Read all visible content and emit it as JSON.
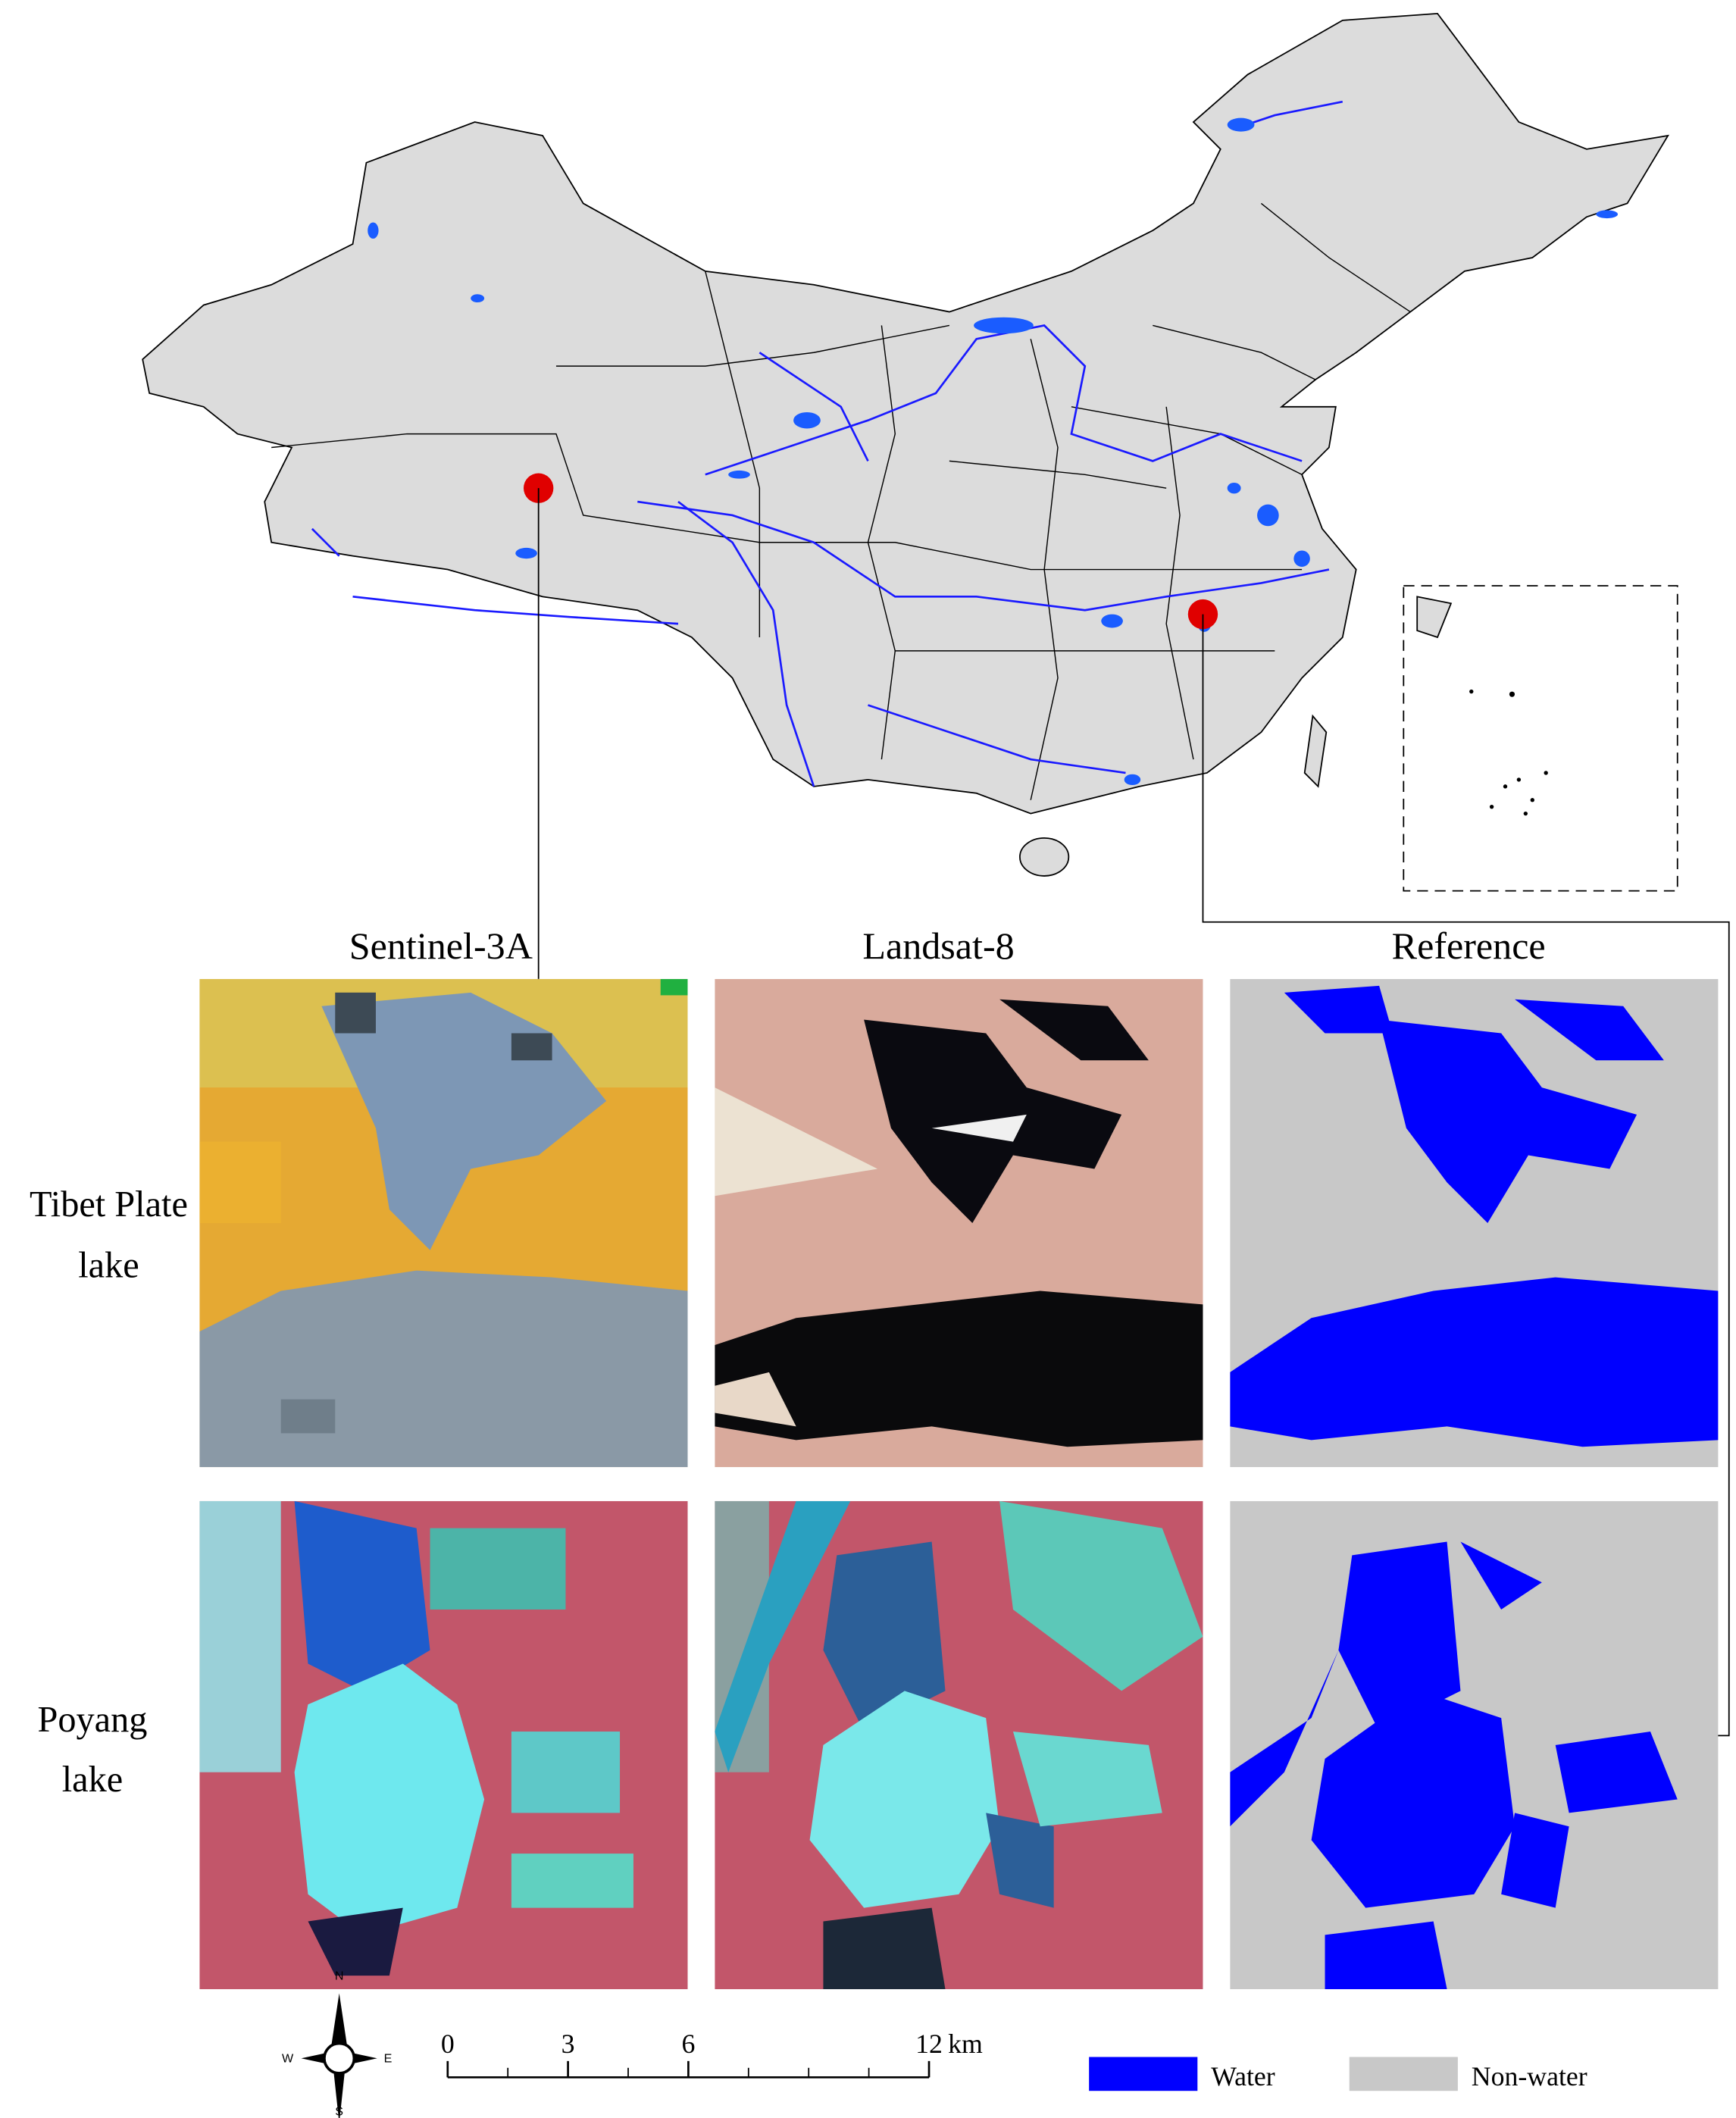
{
  "map": {
    "columns": [
      "Sentinel-3A",
      "Landsat-8",
      "Reference"
    ],
    "rows": [
      [
        "Tibet Plate",
        "lake"
      ],
      [
        "Poyang",
        "lake"
      ]
    ],
    "compass": {
      "north": "N",
      "south": "S",
      "east": "E",
      "west": "W"
    },
    "scale_bar": {
      "ticks": [
        0,
        3,
        6,
        12
      ],
      "unit": "km"
    },
    "legend": [
      {
        "label": "Water",
        "color": "#0000ff"
      },
      {
        "label": "Non-water",
        "color": "#c8c8c8"
      }
    ]
  }
}
